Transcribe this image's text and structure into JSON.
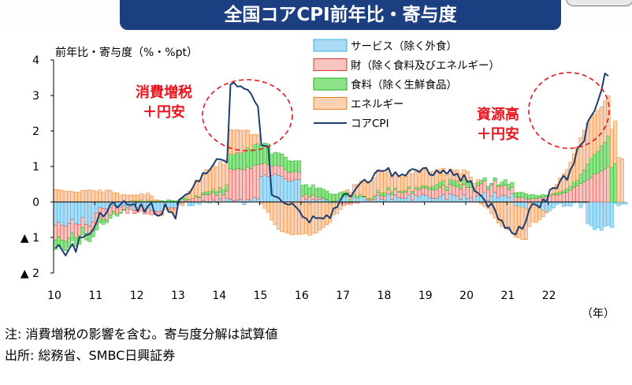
{
  "header": {
    "title": "全国コアCPI前年比・寄与度"
  },
  "chart_data": {
    "type": "bar",
    "stacked": true,
    "title": "",
    "ylabel": "前年比・寄与度（%・%pt）",
    "xlabel": "（年）",
    "ylim": [
      -2,
      4
    ],
    "yticks": [
      {
        "v": 4,
        "label": "4"
      },
      {
        "v": 3,
        "label": "3"
      },
      {
        "v": 2,
        "label": "2"
      },
      {
        "v": 1,
        "label": "1"
      },
      {
        "v": 0,
        "label": "0"
      },
      {
        "v": -1,
        "label": "▲ 1"
      },
      {
        "v": -2,
        "label": "▲ 2"
      }
    ],
    "xticks": [
      "10",
      "11",
      "12",
      "13",
      "14",
      "15",
      "16",
      "17",
      "18",
      "19",
      "20",
      "21",
      "22"
    ],
    "x_start": 2010.0,
    "x_step_months": 1,
    "legend_position": "top-center",
    "series": [
      {
        "name": "サービス（除く外食）",
        "kind": "bar",
        "color": "#a9dcf4",
        "edge": "#3ab0e0",
        "values": [
          -0.66,
          -0.57,
          -0.66,
          -0.68,
          -0.61,
          -0.49,
          -0.62,
          -0.63,
          -0.44,
          -0.63,
          -0.68,
          -0.56,
          -0.31,
          -0.16,
          -0.19,
          -0.2,
          -0.16,
          -0.1,
          -0.16,
          -0.15,
          -0.11,
          -0.17,
          -0.13,
          -0.23,
          -0.14,
          -0.09,
          -0.18,
          -0.17,
          -0.24,
          -0.25,
          -0.27,
          -0.26,
          -0.1,
          -0.16,
          -0.16,
          -0.17,
          -0.03,
          -0.04,
          0.02,
          -0.11,
          -0.1,
          -0.03,
          -0.07,
          0.04,
          -0.01,
          -0.03,
          0.05,
          -0.02,
          0.09,
          0.0,
          0.11,
          0.08,
          0.03,
          0.06,
          0.07,
          -0.08,
          0.07,
          0.05,
          0.12,
          0.09,
          0.72,
          0.77,
          0.72,
          0.75,
          0.79,
          0.75,
          0.73,
          0.65,
          0.58,
          0.6,
          0.64,
          0.63,
          -0.02,
          0.08,
          -0.06,
          0.08,
          0.05,
          0.08,
          0.09,
          0.06,
          -0.06,
          0.02,
          0.04,
          0.09,
          0.15,
          0.16,
          -0.02,
          0.15,
          0.11,
          0.14,
          0.14,
          0.05,
          0.0,
          0.07,
          0.19,
          0.08,
          0.06,
          0.22,
          0.08,
          0.19,
          0.12,
          0.1,
          0.11,
          0.2,
          0.05,
          0.19,
          0.15,
          0.21,
          0.19,
          0.13,
          0.1,
          0.1,
          0.15,
          0.21,
          0.07,
          0.23,
          0.2,
          0.16,
          0.08,
          0.2,
          0.09,
          0.13,
          0.0,
          0.17,
          0.2,
          0.27,
          0.04,
          0.16,
          0.27,
          0.13,
          0.18,
          0.18,
          0.12,
          0.23,
          -0.11,
          -0.13,
          -0.15,
          -0.18,
          -0.03,
          -0.04,
          -0.11,
          -0.17,
          -0.23,
          -0.27,
          -0.25,
          -0.17,
          -0.07,
          -0.03,
          -0.13,
          -0.1,
          -0.12,
          -0.02,
          -0.01,
          -0.16,
          -0.03,
          -0.61,
          -0.67,
          -0.78,
          -0.73,
          -0.8,
          -0.69,
          -0.66,
          -0.72,
          -0.04,
          -0.11,
          -0.06,
          -0.06
        ]
      },
      {
        "name": "財（除く食料及びエネルギー）",
        "kind": "bar",
        "color": "#f9c4c0",
        "edge": "#d53a36",
        "values": [
          -0.41,
          -0.41,
          -0.42,
          -0.43,
          -0.41,
          -0.38,
          -0.4,
          -0.32,
          -0.28,
          -0.26,
          -0.25,
          -0.26,
          -0.33,
          -0.28,
          -0.31,
          -0.31,
          -0.21,
          -0.17,
          -0.19,
          -0.15,
          -0.1,
          -0.15,
          -0.09,
          -0.1,
          -0.15,
          -0.16,
          -0.16,
          -0.16,
          -0.12,
          -0.09,
          -0.13,
          -0.06,
          -0.05,
          -0.05,
          -0.05,
          -0.04,
          0.01,
          0.07,
          0.04,
          0.05,
          0.1,
          0.14,
          0.12,
          0.17,
          0.21,
          0.22,
          0.22,
          0.19,
          0.18,
          0.2,
          0.2,
          0.86,
          0.88,
          0.88,
          0.86,
          0.91,
          0.92,
          0.89,
          0.92,
          0.96,
          0.35,
          0.34,
          0.33,
          0.25,
          0.25,
          0.27,
          0.29,
          0.26,
          0.25,
          0.24,
          0.23,
          0.21,
          0.17,
          0.14,
          0.14,
          0.12,
          0.08,
          0.06,
          0.03,
          0.01,
          0.0,
          -0.03,
          -0.03,
          -0.04,
          -0.04,
          -0.06,
          -0.05,
          -0.02,
          -0.04,
          0.0,
          0.01,
          0.04,
          0.06,
          0.06,
          0.07,
          0.1,
          0.11,
          0.12,
          0.13,
          0.15,
          0.16,
          0.15,
          0.17,
          0.18,
          0.19,
          0.18,
          0.2,
          0.19,
          0.2,
          0.22,
          0.24,
          0.25,
          0.26,
          0.26,
          0.25,
          0.27,
          0.25,
          0.27,
          0.29,
          0.29,
          0.32,
          0.28,
          0.29,
          0.29,
          0.31,
          0.33,
          0.31,
          0.32,
          0.33,
          0.3,
          0.28,
          0.29,
          0.23,
          0.18,
          0.15,
          0.12,
          0.13,
          0.09,
          0.07,
          0.1,
          0.1,
          0.12,
          0.14,
          0.16,
          0.17,
          0.21,
          0.2,
          0.22,
          0.25,
          0.27,
          0.33,
          0.41,
          0.45,
          0.52,
          0.57,
          0.63,
          0.69,
          0.78,
          0.82,
          0.88,
          0.93,
          1.0
        ]
      },
      {
        "name": "食料（除く生鮮食品）",
        "kind": "bar",
        "color": "#8ee28a",
        "edge": "#18b31a",
        "values": [
          -0.27,
          -0.26,
          -0.25,
          -0.26,
          -0.25,
          -0.22,
          -0.23,
          -0.24,
          -0.2,
          -0.18,
          -0.19,
          -0.16,
          -0.15,
          -0.15,
          -0.13,
          -0.07,
          -0.09,
          -0.07,
          -0.05,
          -0.02,
          -0.03,
          0.01,
          0.03,
          0.04,
          0.03,
          0.05,
          0.01,
          0.05,
          0.04,
          0.02,
          0.03,
          0.04,
          0.02,
          0.06,
          0.04,
          0.03,
          0.03,
          0.05,
          0.05,
          0.03,
          0.0,
          0.04,
          0.03,
          0.05,
          0.08,
          0.08,
          0.09,
          0.1,
          0.14,
          0.15,
          0.18,
          0.4,
          0.43,
          0.45,
          0.45,
          0.49,
          0.54,
          0.54,
          0.58,
          0.6,
          0.53,
          0.55,
          0.58,
          0.34,
          0.36,
          0.36,
          0.33,
          0.35,
          0.33,
          0.31,
          0.29,
          0.32,
          0.3,
          0.27,
          0.26,
          0.28,
          0.25,
          0.26,
          0.24,
          0.24,
          0.23,
          0.2,
          0.18,
          0.18,
          0.14,
          0.12,
          0.08,
          0.07,
          0.06,
          0.07,
          0.02,
          0.01,
          0.04,
          0.05,
          0.07,
          0.08,
          0.09,
          0.08,
          0.08,
          0.05,
          0.02,
          0.06,
          0.04,
          0.06,
          0.06,
          0.06,
          0.06,
          0.06,
          0.07,
          0.07,
          0.1,
          0.14,
          0.15,
          0.13,
          0.12,
          0.14,
          0.16,
          0.17,
          0.13,
          0.14,
          0.15,
          0.15,
          0.1,
          0.09,
          0.1,
          0.08,
          0.09,
          0.05,
          0.08,
          0.05,
          0.1,
          0.16,
          0.15,
          0.14,
          0.11,
          0.15,
          0.14,
          0.14,
          0.13,
          0.11,
          0.08,
          0.06,
          0.07,
          0.03,
          0.01,
          0.03,
          0.06,
          0.07,
          0.07,
          0.1,
          0.12,
          0.15,
          0.16,
          0.26,
          0.34,
          0.44,
          0.54,
          0.56,
          0.61,
          0.7,
          0.75,
          0.86,
          0.97,
          1.09
        ]
      },
      {
        "name": "エネルギー",
        "kind": "bar",
        "color": "#fbd1b4",
        "edge": "#f0801e",
        "values": [
          0.35,
          0.35,
          0.33,
          0.3,
          0.31,
          0.29,
          0.27,
          0.28,
          0.33,
          0.33,
          0.34,
          0.32,
          0.29,
          0.34,
          0.28,
          0.34,
          0.33,
          0.26,
          0.26,
          0.2,
          0.21,
          0.18,
          0.17,
          0.16,
          0.16,
          0.18,
          0.19,
          0.2,
          0.13,
          0.04,
          0.02,
          -0.06,
          -0.06,
          -0.06,
          -0.08,
          -0.13,
          -0.03,
          -0.07,
          0.07,
          0.22,
          0.27,
          0.42,
          0.47,
          0.51,
          0.62,
          0.61,
          0.66,
          0.69,
          0.73,
          0.71,
          0.71,
          0.7,
          0.68,
          0.65,
          0.64,
          0.61,
          0.5,
          0.41,
          0.29,
          0.24,
          -0.05,
          -0.18,
          -0.29,
          -0.51,
          -0.64,
          -0.77,
          -0.84,
          -0.85,
          -0.89,
          -0.93,
          -0.91,
          -0.92,
          -0.88,
          -0.89,
          -0.88,
          -0.89,
          -0.87,
          -0.8,
          -0.72,
          -0.64,
          -0.52,
          -0.34,
          -0.3,
          -0.17,
          -0.07,
          0.07,
          0.19,
          0.27,
          0.33,
          0.38,
          0.4,
          0.45,
          0.47,
          0.5,
          0.58,
          0.6,
          0.56,
          0.48,
          0.43,
          0.44,
          0.45,
          0.4,
          0.4,
          0.42,
          0.49,
          0.43,
          0.5,
          0.45,
          0.46,
          0.42,
          0.42,
          0.42,
          0.35,
          0.35,
          0.31,
          0.29,
          0.28,
          0.31,
          0.3,
          0.28,
          0.3,
          0.14,
          0.13,
          0.08,
          -0.06,
          -0.13,
          -0.18,
          -0.33,
          -0.45,
          -0.59,
          -0.69,
          -0.73,
          -0.79,
          -0.86,
          -0.88,
          -0.88,
          -0.91,
          -0.88,
          -0.66,
          -0.52,
          -0.47,
          -0.33,
          -0.19,
          -0.04,
          0.05,
          0.12,
          0.24,
          0.39,
          0.48,
          0.55,
          0.67,
          0.8,
          0.95,
          1.03,
          1.12,
          1.15,
          1.16,
          1.13,
          1.15,
          1.1,
          1.17,
          1.13,
          1.08,
          1.19,
          1.25,
          1.22
        ]
      },
      {
        "name": "コアCPI",
        "kind": "line",
        "color": "#1f3e70",
        "values": [
          -1.31,
          -1.21,
          -1.36,
          -1.51,
          -1.33,
          -1.18,
          -1.41,
          -0.99,
          -1.0,
          -0.93,
          -0.9,
          -0.78,
          -0.58,
          -0.3,
          -0.41,
          -0.3,
          -0.07,
          -0.01,
          -0.16,
          -0.07,
          0.03,
          -0.08,
          -0.08,
          -0.06,
          -0.26,
          -0.06,
          -0.28,
          -0.11,
          -0.03,
          -0.34,
          -0.39,
          -0.35,
          -0.06,
          -0.28,
          -0.29,
          -0.47,
          0.06,
          0.13,
          0.21,
          0.24,
          0.4,
          0.6,
          0.58,
          0.82,
          0.8,
          0.91,
          1.05,
          1.21,
          1.2,
          1.17,
          1.11,
          3.31,
          3.36,
          3.25,
          3.26,
          3.19,
          3.16,
          3.05,
          2.84,
          2.69,
          1.6,
          1.58,
          1.56,
          0.2,
          0.15,
          0.12,
          0.01,
          -0.05,
          -0.08,
          -0.04,
          -0.14,
          -0.24,
          -0.42,
          -0.46,
          -0.58,
          -0.4,
          -0.46,
          -0.45,
          -0.47,
          -0.37,
          -0.46,
          -0.18,
          -0.15,
          0.05,
          0.22,
          0.23,
          0.14,
          0.3,
          0.44,
          0.55,
          0.63,
          0.54,
          0.61,
          0.81,
          0.89,
          0.87,
          0.88,
          0.96,
          0.72,
          0.84,
          0.72,
          0.78,
          0.74,
          0.88,
          0.93,
          0.9,
          0.84,
          0.95,
          0.96,
          0.77,
          0.75,
          0.89,
          0.81,
          0.89,
          0.79,
          0.91,
          0.75,
          0.8,
          0.59,
          0.76,
          0.56,
          0.59,
          0.32,
          0.26,
          0.17,
          0.05,
          -0.14,
          -0.04,
          -0.22,
          -0.49,
          -0.52,
          -0.74,
          -0.72,
          -0.88,
          -0.92,
          -0.69,
          -0.76,
          -0.55,
          -0.2,
          -0.05,
          -0.08,
          -0.16,
          0.08,
          0.0,
          0.34,
          0.4,
          0.38,
          0.6,
          0.74,
          0.62,
          0.92,
          1.08,
          1.52,
          1.61,
          1.72,
          2.26,
          2.42,
          2.57,
          2.85,
          3.15,
          3.62,
          3.55
        ]
      }
    ],
    "annotations": [
      {
        "text": "消費増税\n＋円安",
        "color": "#e8141e"
      },
      {
        "text": "資源高\n＋円安",
        "color": "#e8141e"
      }
    ]
  },
  "notes": {
    "note": "注: 消費増税の影響を含む。寄与度分解は試算値",
    "source": "出所: 総務省、SMBC日興証券"
  }
}
